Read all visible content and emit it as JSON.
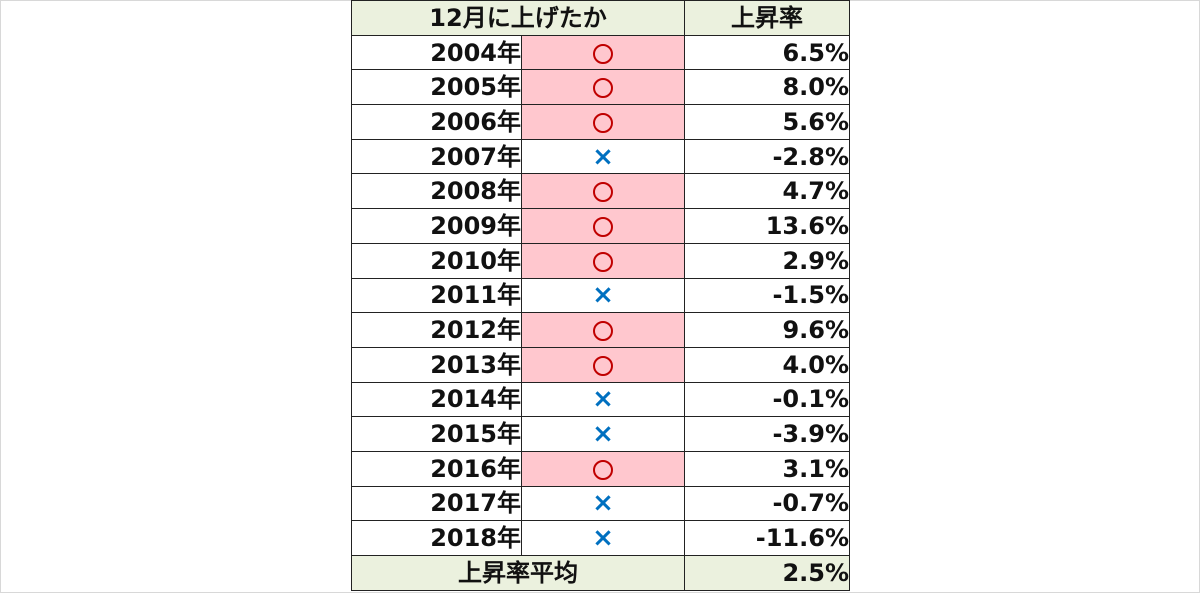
{
  "table": {
    "header": {
      "col_check": "12月に上げたか",
      "col_rate": "上昇率"
    },
    "rows": [
      {
        "year": "2004年",
        "mark": "circle",
        "rate": "6.5%"
      },
      {
        "year": "2005年",
        "mark": "circle",
        "rate": "8.0%"
      },
      {
        "year": "2006年",
        "mark": "circle",
        "rate": "5.6%"
      },
      {
        "year": "2007年",
        "mark": "cross",
        "rate": "-2.8%"
      },
      {
        "year": "2008年",
        "mark": "circle",
        "rate": "4.7%"
      },
      {
        "year": "2009年",
        "mark": "circle",
        "rate": "13.6%"
      },
      {
        "year": "2010年",
        "mark": "circle",
        "rate": "2.9%"
      },
      {
        "year": "2011年",
        "mark": "cross",
        "rate": "-1.5%"
      },
      {
        "year": "2012年",
        "mark": "circle",
        "rate": "9.6%"
      },
      {
        "year": "2013年",
        "mark": "circle",
        "rate": "4.0%"
      },
      {
        "year": "2014年",
        "mark": "cross",
        "rate": "-0.1%"
      },
      {
        "year": "2015年",
        "mark": "cross",
        "rate": "-3.9%"
      },
      {
        "year": "2016年",
        "mark": "circle",
        "rate": "3.1%"
      },
      {
        "year": "2017年",
        "mark": "cross",
        "rate": "-0.7%"
      },
      {
        "year": "2018年",
        "mark": "cross",
        "rate": "-11.6%"
      }
    ],
    "footer": {
      "label": "上昇率平均",
      "value": "2.5%"
    }
  },
  "marks": {
    "circle": "○",
    "cross": "×"
  },
  "colors": {
    "header_bg": "#ebf1de",
    "up_bg": "#ffc7ce",
    "circle_color": "#c00000",
    "cross_color": "#0070c0"
  }
}
